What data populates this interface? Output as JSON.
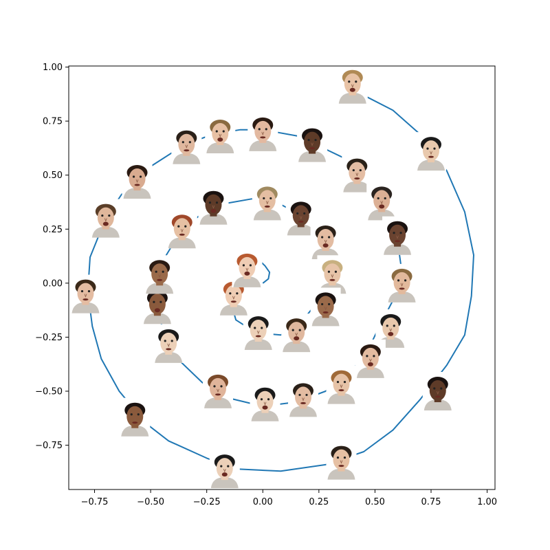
{
  "chart_data": {
    "type": "line",
    "title": "",
    "xlabel": "",
    "ylabel": "",
    "xlim": [
      -0.865,
      1.035
    ],
    "ylim": [
      -0.955,
      1.005
    ],
    "xticks": [
      -0.75,
      -0.5,
      -0.25,
      0.0,
      0.25,
      0.5,
      0.75,
      1.0
    ],
    "xtick_labels": [
      "−0.75",
      "−0.50",
      "−0.25",
      "0.00",
      "0.25",
      "0.50",
      "0.75",
      "1.00"
    ],
    "yticks": [
      -0.75,
      -0.5,
      -0.25,
      0.0,
      0.25,
      0.5,
      0.75,
      1.0
    ],
    "ytick_labels": [
      "−0.75",
      "−0.50",
      "−0.25",
      "0.00",
      "0.25",
      "0.50",
      "0.75",
      "1.00"
    ],
    "grid": false,
    "line_color": "#1f77b4",
    "series": [
      {
        "points": [
          [
            0.0,
            0.0
          ],
          [
            0.025,
            0.02
          ],
          [
            0.03,
            0.05
          ],
          [
            0.01,
            0.08
          ],
          [
            -0.01,
            0.1
          ],
          [
            -0.06,
            0.09
          ],
          [
            -0.12,
            0.02
          ],
          [
            -0.15,
            -0.06
          ],
          [
            -0.12,
            -0.17
          ],
          [
            -0.03,
            -0.23
          ],
          [
            0.08,
            -0.24
          ],
          [
            0.18,
            -0.17
          ],
          [
            0.28,
            -0.04
          ],
          [
            0.32,
            0.08
          ],
          [
            0.28,
            0.2
          ],
          [
            0.18,
            0.31
          ],
          [
            0.05,
            0.38
          ],
          [
            -0.05,
            0.39
          ],
          [
            -0.16,
            0.37
          ],
          [
            -0.26,
            0.33
          ],
          [
            -0.36,
            0.25
          ],
          [
            -0.43,
            0.13
          ],
          [
            -0.48,
            -0.03
          ],
          [
            -0.46,
            -0.17
          ],
          [
            -0.39,
            -0.34
          ],
          [
            -0.27,
            -0.46
          ],
          [
            -0.16,
            -0.53
          ],
          [
            0.0,
            -0.57
          ],
          [
            0.15,
            -0.55
          ],
          [
            0.28,
            -0.5
          ],
          [
            0.45,
            -0.35
          ],
          [
            0.52,
            -0.2
          ],
          [
            0.58,
            -0.08
          ],
          [
            0.62,
            0.05
          ],
          [
            0.6,
            0.2
          ],
          [
            0.55,
            0.35
          ],
          [
            0.48,
            0.45
          ],
          [
            0.38,
            0.57
          ],
          [
            0.26,
            0.63
          ],
          [
            0.16,
            0.68
          ],
          [
            0.0,
            0.71
          ],
          [
            -0.1,
            0.71
          ],
          [
            -0.22,
            0.69
          ],
          [
            -0.35,
            0.64
          ],
          [
            -0.5,
            0.54
          ],
          [
            -0.63,
            0.41
          ],
          [
            -0.7,
            0.3
          ],
          [
            -0.77,
            0.12
          ],
          [
            -0.78,
            -0.04
          ],
          [
            -0.76,
            -0.2
          ],
          [
            -0.72,
            -0.35
          ],
          [
            -0.64,
            -0.5
          ],
          [
            -0.52,
            -0.65
          ],
          [
            -0.42,
            -0.73
          ],
          [
            -0.25,
            -0.81
          ],
          [
            -0.12,
            -0.86
          ],
          [
            0.08,
            -0.87
          ],
          [
            0.28,
            -0.84
          ],
          [
            0.45,
            -0.78
          ],
          [
            0.58,
            -0.68
          ],
          [
            0.7,
            -0.54
          ],
          [
            0.82,
            -0.38
          ],
          [
            0.9,
            -0.24
          ],
          [
            0.93,
            -0.06
          ],
          [
            0.94,
            0.13
          ],
          [
            0.9,
            0.33
          ],
          [
            0.82,
            0.52
          ],
          [
            0.7,
            0.69
          ],
          [
            0.58,
            0.8
          ],
          [
            0.43,
            0.88
          ]
        ]
      }
    ],
    "face_markers": [
      {
        "x": 0.4,
        "y": 0.92,
        "skin": "#e8c3a6",
        "hair": "#b08a55"
      },
      {
        "x": 0.75,
        "y": 0.61,
        "skin": "#e9c9ad",
        "hair": "#1a1a1a"
      },
      {
        "x": 0.42,
        "y": 0.51,
        "skin": "#e4bda3",
        "hair": "#2a2118"
      },
      {
        "x": 0.53,
        "y": 0.38,
        "skin": "#dcb095",
        "hair": "#2b2420"
      },
      {
        "x": 0.22,
        "y": 0.65,
        "skin": "#5e3b28",
        "hair": "#1a1210"
      },
      {
        "x": 0.0,
        "y": 0.7,
        "skin": "#e3b9a0",
        "hair": "#2a1a12"
      },
      {
        "x": -0.19,
        "y": 0.69,
        "skin": "#e7c0a4",
        "hair": "#8a6a40"
      },
      {
        "x": -0.34,
        "y": 0.64,
        "skin": "#e0b89e",
        "hair": "#2a2018"
      },
      {
        "x": -0.56,
        "y": 0.48,
        "skin": "#d9ab90",
        "hair": "#2a1a12"
      },
      {
        "x": -0.7,
        "y": 0.3,
        "skin": "#e0b79b",
        "hair": "#5a3e28"
      },
      {
        "x": -0.79,
        "y": -0.05,
        "skin": "#e4bca2",
        "hair": "#3a2818"
      },
      {
        "x": -0.57,
        "y": -0.62,
        "skin": "#8a5a3c",
        "hair": "#1a1210"
      },
      {
        "x": -0.17,
        "y": -0.86,
        "skin": "#ecd0b8",
        "hair": "#1a1a1a"
      },
      {
        "x": 0.35,
        "y": -0.82,
        "skin": "#e6c0a3",
        "hair": "#2a2018"
      },
      {
        "x": 0.78,
        "y": -0.5,
        "skin": "#5e3b28",
        "hair": "#1a1210"
      },
      {
        "x": 0.57,
        "y": -0.21,
        "skin": "#e8c8ac",
        "hair": "#1a1a1a"
      },
      {
        "x": 0.62,
        "y": 0.0,
        "skin": "#e2b99c",
        "hair": "#8a6a40"
      },
      {
        "x": 0.6,
        "y": 0.22,
        "skin": "#6a4330",
        "hair": "#1a1210"
      },
      {
        "x": 0.48,
        "y": -0.35,
        "skin": "#e3bba0",
        "hair": "#2a1a12"
      },
      {
        "x": 0.35,
        "y": -0.47,
        "skin": "#e6c3a7",
        "hair": "#a06a38"
      },
      {
        "x": 0.18,
        "y": -0.53,
        "skin": "#e3bca2",
        "hair": "#2a2018"
      },
      {
        "x": 0.01,
        "y": -0.55,
        "skin": "#ecd0b8",
        "hair": "#1a1a1a"
      },
      {
        "x": -0.2,
        "y": -0.49,
        "skin": "#e0b49a",
        "hair": "#7a4a2a"
      },
      {
        "x": -0.42,
        "y": -0.28,
        "skin": "#ecd0b8",
        "hair": "#1a1a1a"
      },
      {
        "x": -0.47,
        "y": -0.1,
        "skin": "#8a5a3c",
        "hair": "#1a1210"
      },
      {
        "x": -0.46,
        "y": 0.04,
        "skin": "#9a6a4a",
        "hair": "#2a1a12"
      },
      {
        "x": -0.36,
        "y": 0.25,
        "skin": "#e6c0a3",
        "hair": "#a0482a"
      },
      {
        "x": -0.22,
        "y": 0.36,
        "skin": "#5e3b28",
        "hair": "#1a1210"
      },
      {
        "x": 0.02,
        "y": 0.38,
        "skin": "#e4bea2",
        "hair": "#a08a60"
      },
      {
        "x": 0.17,
        "y": 0.31,
        "skin": "#6a4330",
        "hair": "#1a1210"
      },
      {
        "x": 0.28,
        "y": 0.2,
        "skin": "#e3bca2",
        "hair": "#2a2018"
      },
      {
        "x": 0.31,
        "y": 0.04,
        "skin": "#e7c4a8",
        "hair": "#c8b080"
      },
      {
        "x": 0.28,
        "y": -0.11,
        "skin": "#9a6a4a",
        "hair": "#1a1210"
      },
      {
        "x": 0.15,
        "y": -0.23,
        "skin": "#e0b89e",
        "hair": "#3a2818"
      },
      {
        "x": -0.02,
        "y": -0.22,
        "skin": "#ecd0b8",
        "hair": "#1a1a1a"
      },
      {
        "x": -0.13,
        "y": -0.06,
        "skin": "#efcdb4",
        "hair": "#b85a30"
      },
      {
        "x": -0.07,
        "y": 0.07,
        "skin": "#efcdb4",
        "hair": "#b85a30"
      }
    ]
  }
}
